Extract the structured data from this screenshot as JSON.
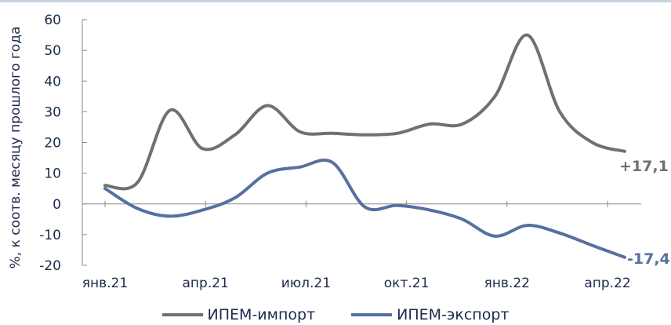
{
  "chart_data": {
    "type": "line",
    "ylabel": "%, к соотв. месяцу прошлого года",
    "ylim": [
      -20,
      60
    ],
    "yticks": [
      -20,
      -10,
      0,
      10,
      20,
      30,
      40,
      50,
      60
    ],
    "x": [
      0,
      1,
      2,
      3,
      4,
      5,
      6,
      7,
      8,
      9,
      10,
      11,
      12,
      13,
      14,
      15,
      16
    ],
    "xticks": [
      {
        "x": 0,
        "label": "янв.21"
      },
      {
        "x": 3,
        "label": "апр.21"
      },
      {
        "x": 6,
        "label": "июл.21"
      },
      {
        "x": 9,
        "label": "окт.21"
      },
      {
        "x": 12,
        "label": "янв.22"
      },
      {
        "x": 15,
        "label": "апр.22"
      }
    ],
    "series": [
      {
        "name": "ИПЕМ-импорт",
        "color": "#707070",
        "values": [
          6.0,
          7.0,
          30.5,
          18.0,
          22.5,
          32.0,
          23.5,
          23.0,
          22.5,
          23.0,
          26.0,
          26.0,
          35.0,
          55.0,
          30.0,
          20.0,
          17.1
        ],
        "end_label": "+17,1"
      },
      {
        "name": "ИПЕМ-экспорт",
        "color": "#5670a0",
        "values": [
          5.0,
          -1.5,
          -4.0,
          -2.0,
          2.0,
          10.0,
          12.0,
          13.5,
          -1.0,
          -0.5,
          -2.0,
          -5.0,
          -10.5,
          -7.0,
          -9.5,
          -13.5,
          -17.4
        ],
        "end_label": "-17,4"
      }
    ],
    "grid": false,
    "legend_position": "bottom"
  }
}
